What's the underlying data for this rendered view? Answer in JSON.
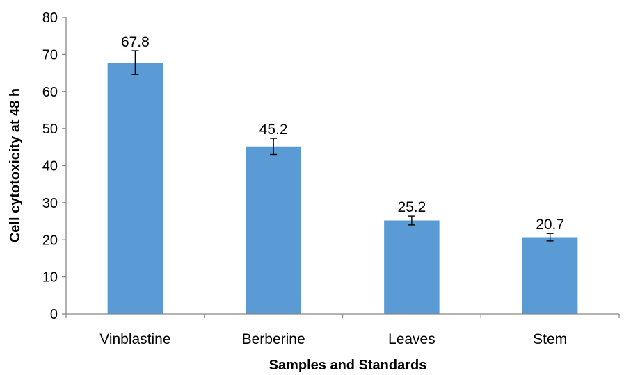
{
  "chart_data": {
    "type": "bar",
    "title": "",
    "xlabel": "Samples and Standards",
    "ylabel": "Cell cytotoxicity at 48 h",
    "categories": [
      "Vinblastine",
      "Berberine",
      "Leaves",
      "Stem"
    ],
    "values": [
      67.8,
      45.2,
      25.2,
      20.7
    ],
    "value_labels": [
      "67.8",
      "45.2",
      "25.2",
      "20.7"
    ],
    "error": [
      3.2,
      2.2,
      1.2,
      1.0
    ],
    "ylim": [
      0,
      80
    ],
    "yticks": [
      "0",
      "10",
      "20",
      "30",
      "40",
      "50",
      "60",
      "70",
      "80"
    ],
    "grid": false,
    "legend": "none",
    "bar_color": "#5B9BD5"
  }
}
